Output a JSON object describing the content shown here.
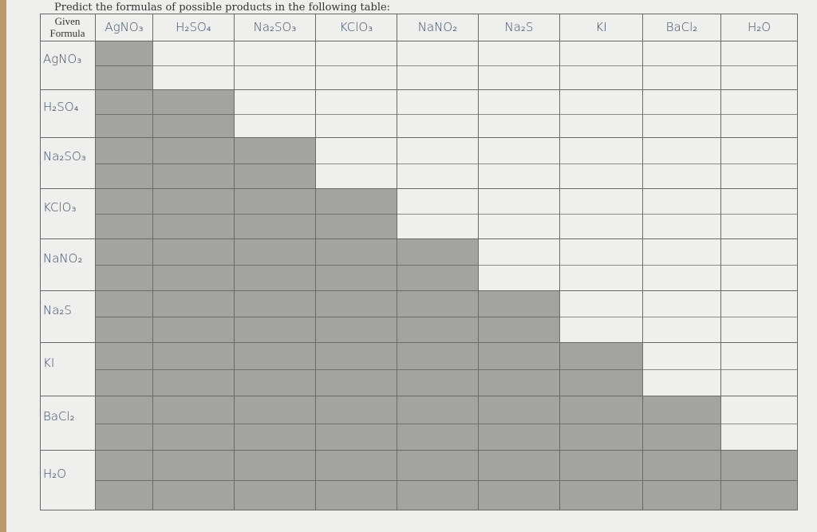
{
  "title": "Predict the formulas of possible products in the following table:",
  "corner_label": [
    "Given",
    "Formula"
  ],
  "columns": [
    "AgNO₃",
    "H₂SO₄",
    "Na₂SO₃",
    "KClO₃",
    "NaNO₂",
    "Na₂S",
    "KI",
    "BaCl₂",
    "H₂O"
  ],
  "rows": [
    "AgNO₃",
    "H₂SO₄",
    "Na₂SO₃",
    "KClO₃",
    "NaNO₂",
    "Na₂S",
    "KI",
    "BaCl₂",
    "H₂O"
  ],
  "shading": "lower-triangle including diagonal",
  "colors": {
    "shade": "#a3a3a1",
    "paper": "#efefed",
    "ink": "#3d4a66"
  }
}
